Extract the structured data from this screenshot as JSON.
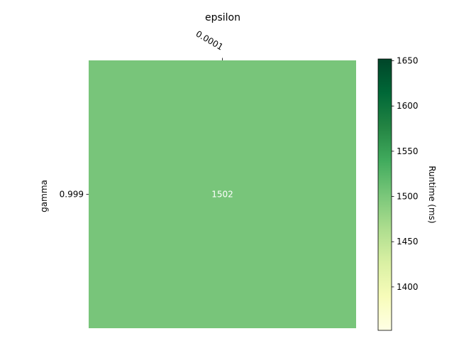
{
  "chart_data": {
    "type": "heatmap",
    "title": "epsilon",
    "xlabel": "epsilon",
    "ylabel": "gamma",
    "x_categories": [
      "0.0001"
    ],
    "y_categories": [
      "0.999"
    ],
    "values": [
      [
        1502
      ]
    ],
    "cell_labels": [
      [
        "1502"
      ]
    ],
    "colorbar": {
      "label": "Runtime (ms)",
      "colormap": "YlGn",
      "range": [
        1352,
        1652
      ],
      "ticks": [
        1400,
        1450,
        1500,
        1550,
        1600,
        1650
      ],
      "tick_labels": [
        "1400",
        "1450",
        "1500",
        "1550",
        "1600",
        "1650"
      ]
    },
    "colors": {
      "cell": "#78c57a",
      "cell_text": "#ffffff",
      "colormap_stops": [
        "#ffffe5",
        "#f7fcb9",
        "#d9f0a3",
        "#addd8e",
        "#78c679",
        "#41ab5d",
        "#238443",
        "#006837",
        "#004529"
      ]
    },
    "grid": false
  }
}
